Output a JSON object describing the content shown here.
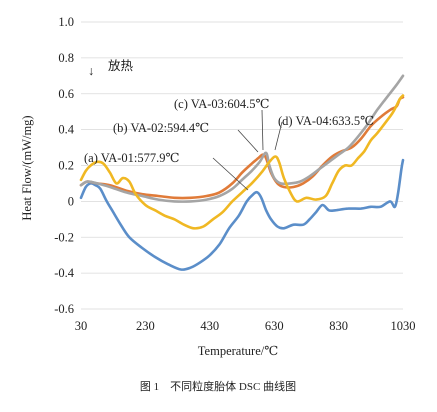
{
  "chart_data": {
    "type": "line",
    "xlabel": "Temperature/℃",
    "ylabel": "Heat Flow/(mW/mg)",
    "xlim": [
      30,
      1030
    ],
    "ylim": [
      -0.6,
      1.0
    ],
    "x_ticks": [
      "30",
      "230",
      "430",
      "630",
      "830",
      "1030"
    ],
    "y_ticks": [
      "-0.6",
      "-0.4",
      "-0.2",
      "0",
      "0.2",
      "0.4",
      "0.6",
      "0.8",
      "1.0"
    ],
    "grid": "horizontal",
    "caption": "图 1　不同粒度胎体 DSC 曲线图",
    "exotherm_label": "放热",
    "exotherm_arrow": "↓",
    "annotations": [
      {
        "text": "(a) VA-01:577.9℃",
        "x": 577.9
      },
      {
        "text": "(b) VA-02:594.4℃",
        "x": 594.4
      },
      {
        "text": "(c) VA-03:604.5℃",
        "x": 604.5
      },
      {
        "text": "(d) VA-04:633.5℃",
        "x": 633.5
      }
    ],
    "series": [
      {
        "color": "#5b8ec9",
        "points": [
          [
            30,
            0.02
          ],
          [
            45,
            0.08
          ],
          [
            60,
            0.1
          ],
          [
            75,
            0.09
          ],
          [
            90,
            0.07
          ],
          [
            110,
            0.0
          ],
          [
            130,
            -0.06
          ],
          [
            150,
            -0.12
          ],
          [
            180,
            -0.2
          ],
          [
            220,
            -0.26
          ],
          [
            260,
            -0.31
          ],
          [
            300,
            -0.35
          ],
          [
            340,
            -0.38
          ],
          [
            370,
            -0.37
          ],
          [
            400,
            -0.34
          ],
          [
            430,
            -0.3
          ],
          [
            460,
            -0.24
          ],
          [
            490,
            -0.15
          ],
          [
            520,
            -0.08
          ],
          [
            545,
            0.0
          ],
          [
            565,
            0.04
          ],
          [
            577.9,
            0.05
          ],
          [
            590,
            0.02
          ],
          [
            605,
            -0.05
          ],
          [
            620,
            -0.1
          ],
          [
            640,
            -0.14
          ],
          [
            660,
            -0.15
          ],
          [
            690,
            -0.13
          ],
          [
            720,
            -0.13
          ],
          [
            740,
            -0.1
          ],
          [
            760,
            -0.06
          ],
          [
            780,
            -0.02
          ],
          [
            800,
            -0.05
          ],
          [
            820,
            -0.05
          ],
          [
            860,
            -0.04
          ],
          [
            900,
            -0.04
          ],
          [
            930,
            -0.03
          ],
          [
            960,
            -0.03
          ],
          [
            990,
            0.0
          ],
          [
            1005,
            -0.03
          ],
          [
            1015,
            0.05
          ],
          [
            1025,
            0.18
          ],
          [
            1030,
            0.23
          ]
        ]
      },
      {
        "color": "#e07b39",
        "points": [
          [
            30,
            0.09
          ],
          [
            50,
            0.11
          ],
          [
            80,
            0.1
          ],
          [
            120,
            0.09
          ],
          [
            170,
            0.06
          ],
          [
            220,
            0.04
          ],
          [
            270,
            0.03
          ],
          [
            320,
            0.02
          ],
          [
            370,
            0.02
          ],
          [
            420,
            0.03
          ],
          [
            460,
            0.05
          ],
          [
            500,
            0.1
          ],
          [
            530,
            0.16
          ],
          [
            560,
            0.21
          ],
          [
            580,
            0.24
          ],
          [
            594.4,
            0.26
          ],
          [
            605,
            0.24
          ],
          [
            620,
            0.16
          ],
          [
            640,
            0.1
          ],
          [
            660,
            0.08
          ],
          [
            690,
            0.08
          ],
          [
            720,
            0.1
          ],
          [
            750,
            0.14
          ],
          [
            780,
            0.2
          ],
          [
            810,
            0.25
          ],
          [
            840,
            0.28
          ],
          [
            870,
            0.3
          ],
          [
            900,
            0.35
          ],
          [
            930,
            0.42
          ],
          [
            960,
            0.47
          ],
          [
            990,
            0.51
          ],
          [
            1010,
            0.53
          ],
          [
            1020,
            0.57
          ],
          [
            1030,
            0.58
          ]
        ]
      },
      {
        "color": "#a5a5a5",
        "points": [
          [
            30,
            0.09
          ],
          [
            50,
            0.11
          ],
          [
            80,
            0.1
          ],
          [
            120,
            0.08
          ],
          [
            170,
            0.05
          ],
          [
            220,
            0.03
          ],
          [
            270,
            0.01
          ],
          [
            320,
            0.0
          ],
          [
            370,
            0.0
          ],
          [
            420,
            0.01
          ],
          [
            460,
            0.03
          ],
          [
            500,
            0.07
          ],
          [
            530,
            0.12
          ],
          [
            560,
            0.17
          ],
          [
            585,
            0.22
          ],
          [
            604.5,
            0.27
          ],
          [
            615,
            0.2
          ],
          [
            630,
            0.13
          ],
          [
            650,
            0.1
          ],
          [
            680,
            0.1
          ],
          [
            710,
            0.11
          ],
          [
            740,
            0.14
          ],
          [
            770,
            0.18
          ],
          [
            800,
            0.22
          ],
          [
            830,
            0.26
          ],
          [
            860,
            0.3
          ],
          [
            890,
            0.36
          ],
          [
            920,
            0.43
          ],
          [
            950,
            0.51
          ],
          [
            980,
            0.58
          ],
          [
            1010,
            0.65
          ],
          [
            1030,
            0.7
          ]
        ]
      },
      {
        "color": "#f0b823",
        "points": [
          [
            30,
            0.12
          ],
          [
            45,
            0.17
          ],
          [
            60,
            0.2
          ],
          [
            80,
            0.22
          ],
          [
            100,
            0.21
          ],
          [
            120,
            0.16
          ],
          [
            140,
            0.1
          ],
          [
            160,
            0.13
          ],
          [
            180,
            0.11
          ],
          [
            200,
            0.04
          ],
          [
            230,
            -0.02
          ],
          [
            260,
            -0.05
          ],
          [
            290,
            -0.08
          ],
          [
            320,
            -0.1
          ],
          [
            350,
            -0.13
          ],
          [
            380,
            -0.15
          ],
          [
            410,
            -0.14
          ],
          [
            440,
            -0.1
          ],
          [
            470,
            -0.06
          ],
          [
            500,
            0.0
          ],
          [
            530,
            0.05
          ],
          [
            560,
            0.1
          ],
          [
            590,
            0.16
          ],
          [
            615,
            0.22
          ],
          [
            633.5,
            0.25
          ],
          [
            645,
            0.22
          ],
          [
            660,
            0.13
          ],
          [
            680,
            0.05
          ],
          [
            700,
            0.0
          ],
          [
            730,
            0.02
          ],
          [
            760,
            0.01
          ],
          [
            790,
            0.03
          ],
          [
            810,
            0.1
          ],
          [
            830,
            0.17
          ],
          [
            850,
            0.2
          ],
          [
            870,
            0.2
          ],
          [
            890,
            0.24
          ],
          [
            910,
            0.28
          ],
          [
            930,
            0.34
          ],
          [
            950,
            0.38
          ],
          [
            980,
            0.45
          ],
          [
            1000,
            0.5
          ],
          [
            1020,
            0.57
          ],
          [
            1030,
            0.59
          ]
        ]
      }
    ]
  }
}
